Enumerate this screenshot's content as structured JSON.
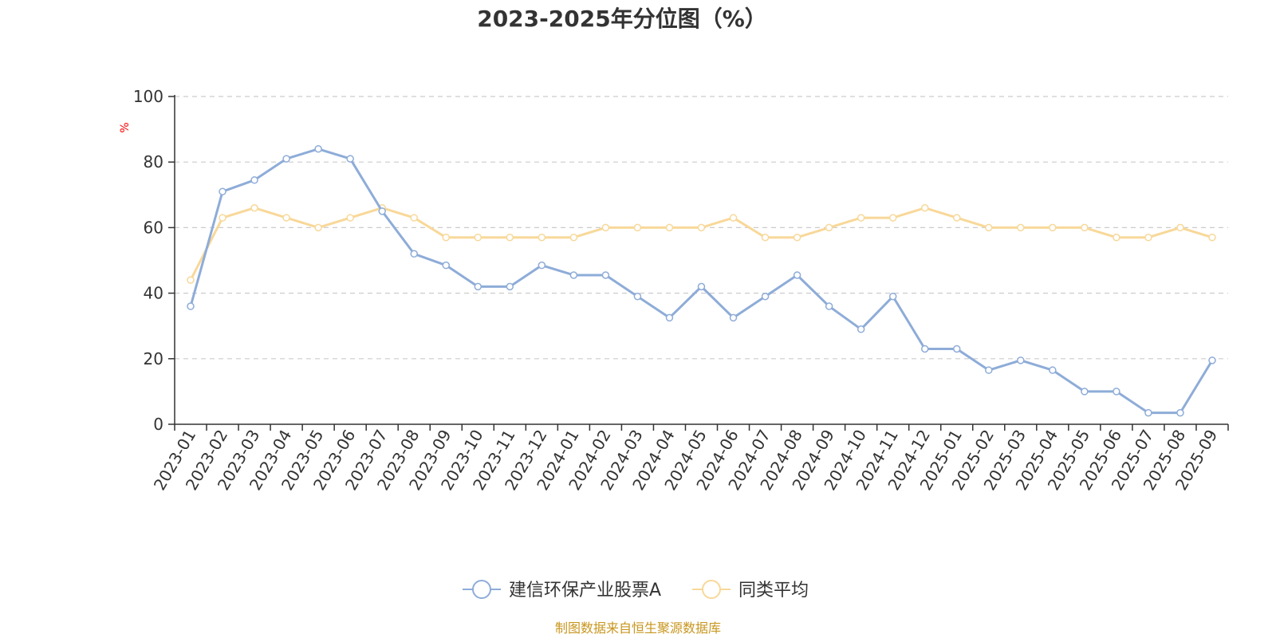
{
  "chart_data": {
    "type": "line",
    "title": "2023-2025年分位图（%）",
    "ylabel": "%",
    "xlabel": "",
    "ylim": [
      0,
      100
    ],
    "yticks": [
      0,
      20,
      40,
      60,
      80,
      100
    ],
    "grid": true,
    "legend_position": "bottom-center",
    "categories": [
      "2023-01",
      "2023-02",
      "2023-03",
      "2023-04",
      "2023-05",
      "2023-06",
      "2023-07",
      "2023-08",
      "2023-09",
      "2023-10",
      "2023-11",
      "2023-12",
      "2024-01",
      "2024-02",
      "2024-03",
      "2024-04",
      "2024-05",
      "2024-06",
      "2024-07",
      "2024-08",
      "2024-09",
      "2024-10",
      "2024-11",
      "2024-12",
      "2025-01",
      "2025-02",
      "2025-03",
      "2025-04",
      "2025-05",
      "2025-06",
      "2025-07",
      "2025-08",
      "2025-09"
    ],
    "series": [
      {
        "name": "建信环保产业股票A",
        "color": "#8eacd8",
        "values": [
          36,
          71,
          74.5,
          81,
          84,
          81,
          65,
          52,
          48.5,
          42,
          42,
          48.5,
          45.5,
          45.5,
          39,
          32.5,
          42,
          32.5,
          39,
          45.5,
          36,
          29,
          39,
          23,
          23,
          16.5,
          19.5,
          16.5,
          10,
          10,
          3.5,
          3.5,
          19.5
        ]
      },
      {
        "name": "同类平均",
        "color": "#f8d899",
        "values": [
          44,
          63,
          66,
          63,
          60,
          63,
          66,
          63,
          57,
          57,
          57,
          57,
          57,
          60,
          60,
          60,
          60,
          63,
          57,
          57,
          60,
          63,
          63,
          66,
          63,
          60,
          60,
          60,
          60,
          57,
          57,
          60,
          57
        ]
      }
    ],
    "unit_color": "#ff0000",
    "axis_color": "#333333",
    "grid_color": "#cccccc"
  },
  "footer": {
    "source": "制图数据来自恒生聚源数据库",
    "color": "#c8961e"
  }
}
